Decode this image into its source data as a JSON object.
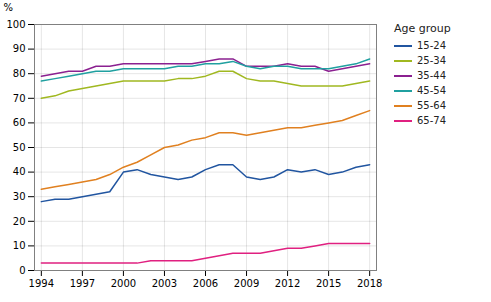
{
  "chart_data": {
    "type": "line",
    "ylabel": "%",
    "legend_title": "Age group",
    "legend": "right",
    "grid": true,
    "x": [
      1994,
      1995,
      1996,
      1997,
      1998,
      1999,
      2000,
      2001,
      2002,
      2003,
      2004,
      2005,
      2006,
      2007,
      2008,
      2009,
      2010,
      2011,
      2012,
      2013,
      2014,
      2015,
      2016,
      2017,
      2018
    ],
    "xlim": [
      1993.5,
      2018.5
    ],
    "xticks": [
      1994,
      1997,
      2000,
      2003,
      2006,
      2009,
      2012,
      2015,
      2018
    ],
    "ylim": [
      0,
      100
    ],
    "yticks": [
      0,
      10,
      20,
      30,
      40,
      50,
      60,
      70,
      80,
      90,
      100
    ],
    "series": [
      {
        "name": "15-24",
        "color": "#2155a0",
        "values": [
          28,
          29,
          29,
          30,
          31,
          32,
          40,
          41,
          39,
          38,
          37,
          38,
          41,
          43,
          43,
          38,
          37,
          38,
          41,
          40,
          41,
          39,
          40,
          42,
          43
        ]
      },
      {
        "name": "25-34",
        "color": "#a0b820",
        "values": [
          70,
          71,
          73,
          74,
          75,
          76,
          77,
          77,
          77,
          77,
          78,
          78,
          79,
          81,
          81,
          78,
          77,
          77,
          76,
          75,
          75,
          75,
          75,
          76,
          77
        ]
      },
      {
        "name": "35-44",
        "color": "#8b2090",
        "values": [
          79,
          80,
          81,
          81,
          83,
          83,
          84,
          84,
          84,
          84,
          84,
          84,
          85,
          86,
          86,
          83,
          83,
          83,
          84,
          83,
          83,
          81,
          82,
          83,
          84
        ]
      },
      {
        "name": "45-54",
        "color": "#20a0a0",
        "values": [
          77,
          78,
          79,
          80,
          81,
          81,
          82,
          82,
          82,
          82,
          83,
          83,
          84,
          84,
          85,
          83,
          82,
          83,
          83,
          82,
          82,
          82,
          83,
          84,
          86
        ]
      },
      {
        "name": "55-64",
        "color": "#e08020",
        "values": [
          33,
          34,
          35,
          36,
          37,
          39,
          42,
          44,
          47,
          50,
          51,
          53,
          54,
          56,
          56,
          55,
          56,
          57,
          58,
          58,
          59,
          60,
          61,
          63,
          65
        ]
      },
      {
        "name": "65-74",
        "color": "#e02080",
        "values": [
          3,
          3,
          3,
          3,
          3,
          3,
          3,
          3,
          4,
          4,
          4,
          4,
          5,
          6,
          7,
          7,
          7,
          8,
          9,
          9,
          10,
          11,
          11,
          11,
          11
        ]
      }
    ]
  }
}
